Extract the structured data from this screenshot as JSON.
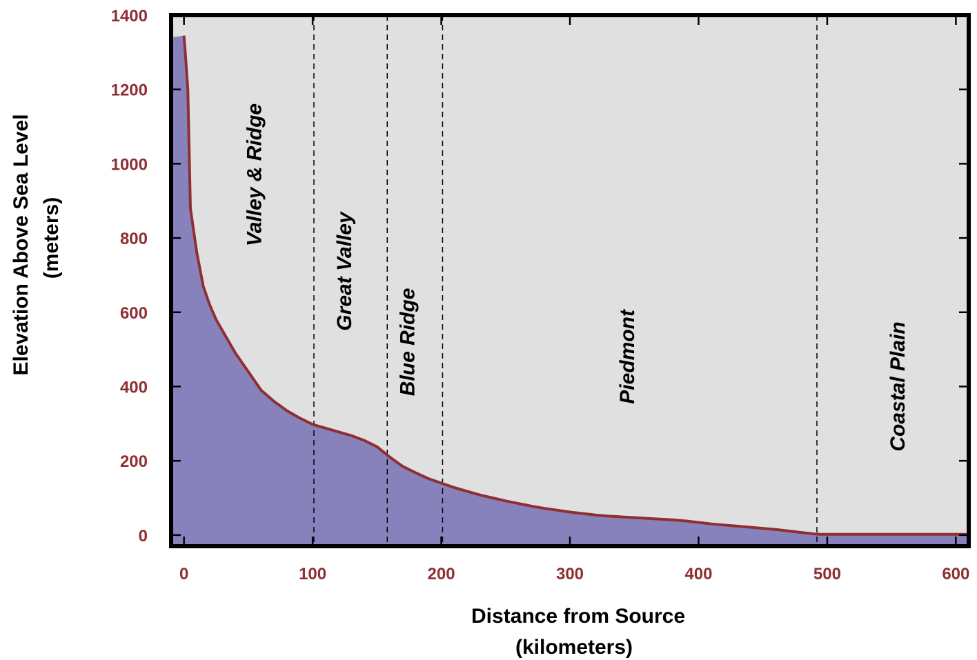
{
  "chart_data": {
    "type": "area",
    "xlabel_line1": "Distance from Source",
    "xlabel_line2": "(kilometers)",
    "ylabel_line1": "Elevation Above Sea Level",
    "ylabel_line2": "(meters)",
    "xlim": [
      -10,
      610
    ],
    "ylim": [
      -30,
      1400
    ],
    "xticks": [
      0,
      100,
      200,
      300,
      400,
      500,
      600
    ],
    "yticks": [
      0,
      200,
      400,
      600,
      800,
      1000,
      1200,
      1400
    ],
    "grid": false,
    "profile": {
      "x": [
        0,
        1,
        3,
        5,
        10,
        15,
        20,
        25,
        30,
        35,
        40,
        45,
        50,
        55,
        60,
        65,
        70,
        80,
        90,
        100,
        110,
        120,
        130,
        140,
        150,
        160,
        170,
        180,
        190,
        200,
        210,
        220,
        230,
        240,
        250,
        260,
        270,
        280,
        290,
        300,
        310,
        320,
        330,
        340,
        350,
        360,
        370,
        380,
        390,
        400,
        410,
        420,
        430,
        440,
        450,
        460,
        470,
        480,
        490,
        495,
        500,
        550,
        610
      ],
      "y": [
        1345,
        1300,
        1200,
        880,
        760,
        670,
        620,
        580,
        550,
        520,
        490,
        465,
        440,
        415,
        390,
        375,
        360,
        335,
        315,
        298,
        288,
        278,
        268,
        255,
        238,
        210,
        185,
        168,
        152,
        140,
        128,
        118,
        108,
        100,
        92,
        85,
        78,
        72,
        67,
        62,
        58,
        54,
        51,
        49,
        47,
        45,
        43,
        41,
        38,
        34,
        30,
        27,
        24,
        21,
        18,
        15,
        11,
        7,
        3,
        2,
        2,
        2,
        2
      ]
    },
    "boundaries": [
      101,
      158,
      201,
      492
    ],
    "regions": [
      {
        "label": "Valley & Ridge",
        "x": 60,
        "y": 970
      },
      {
        "label": "Great Valley",
        "x": 130,
        "y": 710
      },
      {
        "label": "Blue Ridge",
        "x": 179,
        "y": 520
      },
      {
        "label": "Piedmont",
        "x": 350,
        "y": 480
      },
      {
        "label": "Coastal Plain",
        "x": 560,
        "y": 400
      }
    ],
    "colors": {
      "plot_background": "#e0e0e0",
      "area_fill": "#8882bc",
      "profile_line": "#8e2f32",
      "tick_labels": "#8e2f32",
      "frame": "#000000"
    }
  }
}
